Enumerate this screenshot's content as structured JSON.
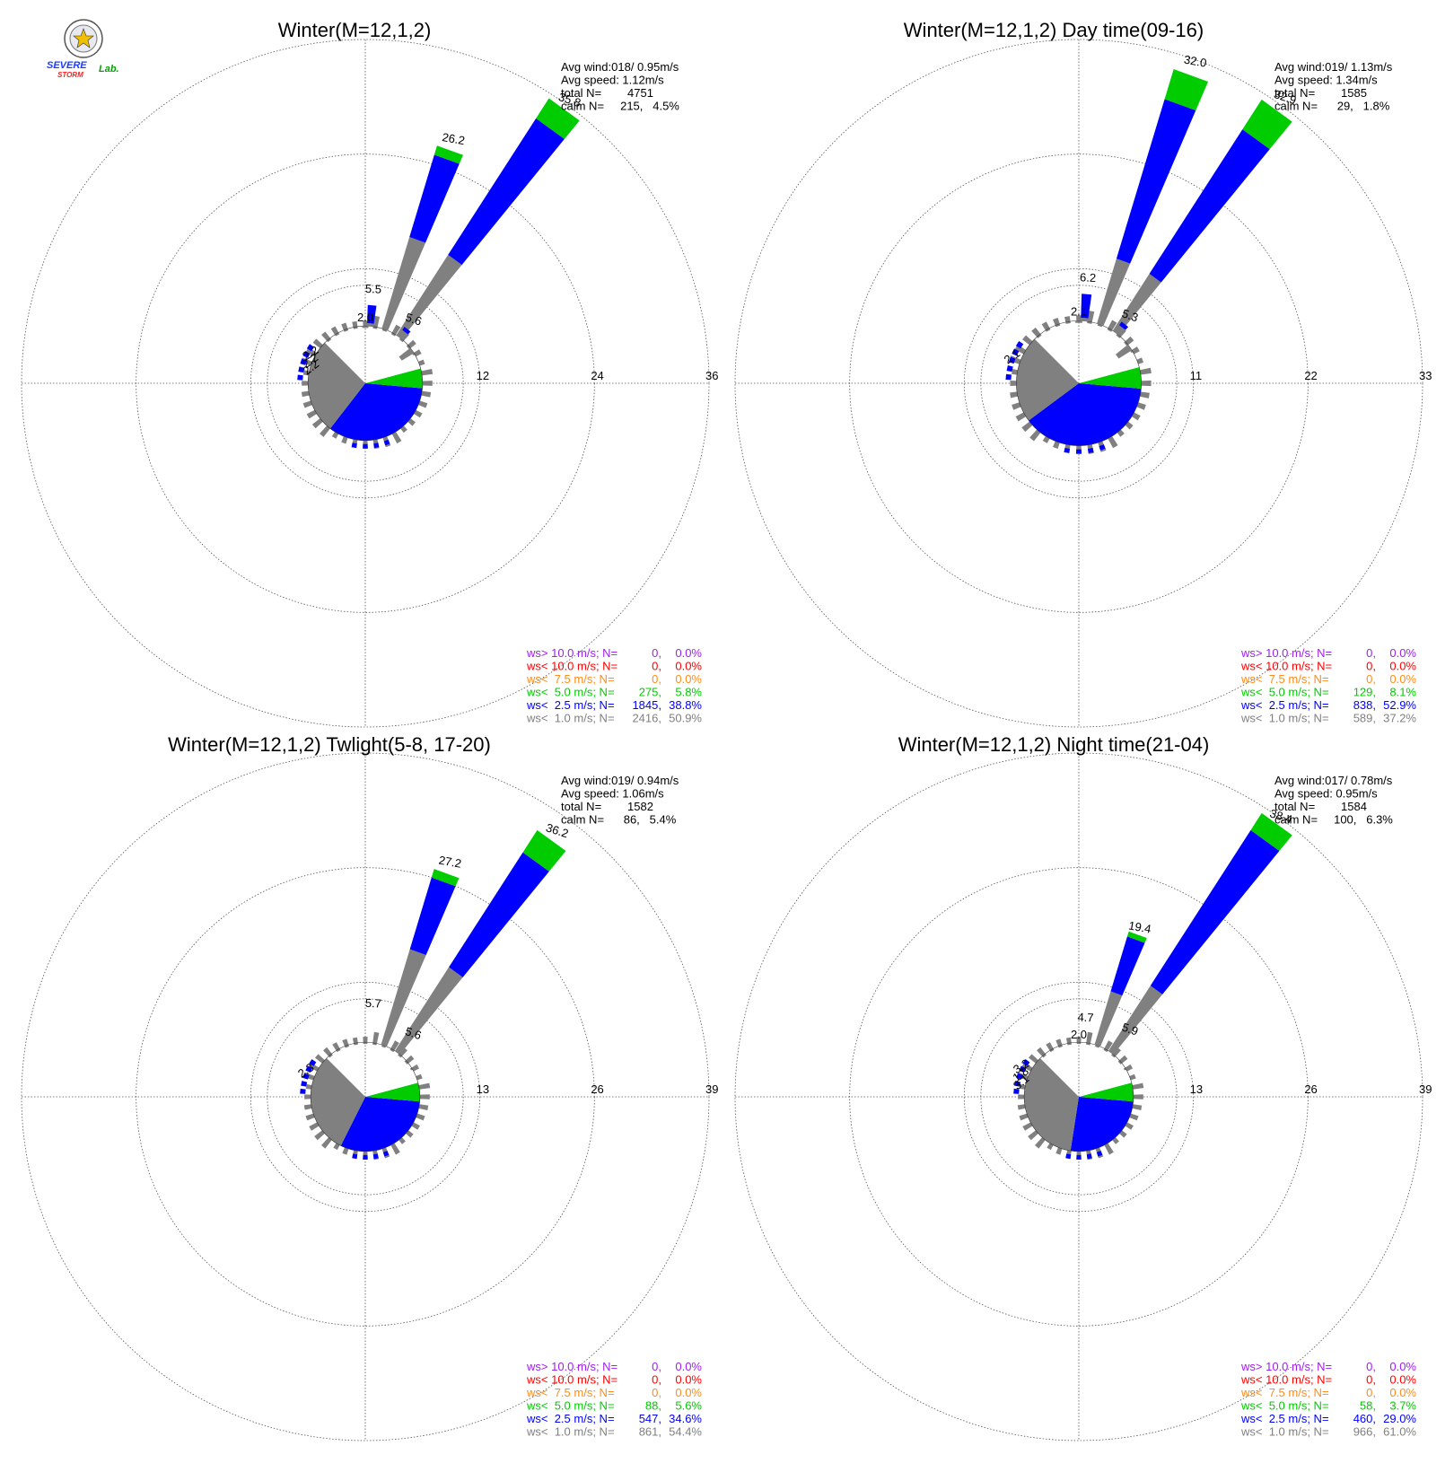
{
  "colors": {
    "ws_gt_10": "#a020f0",
    "ws_lt_10": "#ff0000",
    "ws_lt_7_5": "#ff8c1a",
    "ws_lt_5": "#00cc00",
    "ws_lt_2_5": "#0000ff",
    "ws_lt_1": "#808080"
  },
  "logo": {
    "text_severe": "SEVERE",
    "text_storm": "STORM",
    "text_lab": "Lab."
  },
  "chart_data": [
    {
      "type": "windrose",
      "title": "Winter(M=12,1,2)",
      "rmax": 36,
      "ticks": [
        "12",
        "24",
        "36"
      ],
      "info": [
        "Avg wind:018/ 0.95m/s",
        "Avg speed: 1.12m/s",
        "total N=        4751",
        "calm N=     215,   4.5%"
      ],
      "petal_labels": [
        {
          "text": "35.8",
          "dir": 36,
          "r": 36.2
        },
        {
          "text": "26.2",
          "dir": 20,
          "r": 26.8
        },
        {
          "text": "5.5",
          "dir": 5,
          "r": 9.5
        },
        {
          "text": "2.0",
          "dir": 0,
          "r": 6.5
        },
        {
          "text": "5.6",
          "dir": 38,
          "r": 8.0
        },
        {
          "text": "2.2",
          "dir": 297,
          "r": 6.2
        },
        {
          "text": "2.2",
          "dir": 290,
          "r": 5.9
        },
        {
          "text": "2.2",
          "dir": 284,
          "r": 5.6
        }
      ],
      "petals": [
        {
          "dir": 20,
          "g": 16,
          "b": 25,
          "gr": 26
        },
        {
          "dir": 36,
          "g": 16,
          "b": 33,
          "gr": 35.5
        },
        {
          "dir": 5,
          "g": 6.3,
          "b": 8.2
        },
        {
          "dir": 0,
          "g": 5.8
        },
        {
          "dir": 38,
          "g": 6.8,
          "b": 7.2
        },
        {
          "dir": 55,
          "g": 4.5
        }
      ],
      "core": {
        "r": 6,
        "b": 0.55,
        "gr": 0.12
      },
      "legend": [
        {
          "label": "ws> 10.0 m/s; N=",
          "n": "0,",
          "pct": "0.0%",
          "color": "ws_gt_10"
        },
        {
          "label": "ws< 10.0 m/s; N=",
          "n": "0,",
          "pct": "0.0%",
          "color": "ws_lt_10"
        },
        {
          "label": "ws<  7.5 m/s; N=",
          "n": "0,",
          "pct": "0.0%",
          "color": "ws_lt_7_5"
        },
        {
          "label": "ws<  5.0 m/s; N=",
          "n": "275,",
          "pct": "5.8%",
          "color": "ws_lt_5"
        },
        {
          "label": "ws<  2.5 m/s; N=",
          "n": "1845,",
          "pct": "38.8%",
          "color": "ws_lt_2_5"
        },
        {
          "label": "ws<  1.0 m/s; N=",
          "n": "2416,",
          "pct": "50.9%",
          "color": "ws_lt_1"
        }
      ]
    },
    {
      "type": "windrose",
      "title": "Winter(M=12,1,2) Day time(09-16)",
      "rmax": 33,
      "ticks": [
        "11",
        "22",
        "33"
      ],
      "info": [
        "Avg wind:019/ 1.13m/s",
        "Avg speed: 1.34m/s",
        "total N=        1585",
        "calm N=      29,   1.8%"
      ],
      "petal_labels": [
        {
          "text": "32.0",
          "dir": 20,
          "r": 32.5
        },
        {
          "text": "32.9",
          "dir": 36,
          "r": 33.5
        },
        {
          "text": "6.2",
          "dir": 5,
          "r": 9.8
        },
        {
          "text": "2.1",
          "dir": 0,
          "r": 6.5
        },
        {
          "text": "5.3",
          "dir": 38,
          "r": 7.8
        },
        {
          "text": "2.1",
          "dir": 290,
          "r": 6.6
        }
      ],
      "petals": [
        {
          "dir": 20,
          "g": 12.5,
          "b": 28.5,
          "gr": 31.5
        },
        {
          "dir": 36,
          "g": 12.5,
          "b": 29,
          "gr": 32.4
        },
        {
          "dir": 5,
          "g": 6.3,
          "b": 8.6
        },
        {
          "dir": 0,
          "g": 5.8
        },
        {
          "dir": 38,
          "g": 6.8,
          "b": 7.2
        },
        {
          "dir": 55,
          "g": 4.5
        }
      ],
      "core": {
        "r": 6,
        "b": 0.62,
        "gr": 0.1
      },
      "legend": [
        {
          "label": "ws> 10.0 m/s; N=",
          "n": "0,",
          "pct": "0.0%",
          "color": "ws_gt_10"
        },
        {
          "label": "ws< 10.0 m/s; N=",
          "n": "0,",
          "pct": "0.0%",
          "color": "ws_lt_10"
        },
        {
          "label": "ws<  7.5 m/s; N=",
          "n": "0,",
          "pct": "0.0%",
          "color": "ws_lt_7_5"
        },
        {
          "label": "ws<  5.0 m/s; N=",
          "n": "129,",
          "pct": "8.1%",
          "color": "ws_lt_5"
        },
        {
          "label": "ws<  2.5 m/s; N=",
          "n": "838,",
          "pct": "52.9%",
          "color": "ws_lt_2_5"
        },
        {
          "label": "ws<  1.0 m/s; N=",
          "n": "589,",
          "pct": "37.2%",
          "color": "ws_lt_1"
        }
      ]
    },
    {
      "type": "windrose",
      "title": "Winter(M=12,1,2) Twlight(5-8, 17-20)",
      "rmax": 39,
      "ticks": [
        "13",
        "26",
        "39"
      ],
      "info": [
        "Avg wind:019/ 0.94m/s",
        "Avg speed: 1.06m/s",
        "total N=        1582",
        "calm N=      86,   5.4%"
      ],
      "petal_labels": [
        {
          "text": "36.2",
          "dir": 36,
          "r": 36.8
        },
        {
          "text": "27.2",
          "dir": 20,
          "r": 27.9
        },
        {
          "text": "5.7",
          "dir": 5,
          "r": 10.2
        },
        {
          "text": "5.6",
          "dir": 38,
          "r": 8.6
        },
        {
          "text": "2.3",
          "dir": 292,
          "r": 7.0
        }
      ],
      "petals": [
        {
          "dir": 20,
          "g": 17.5,
          "b": 26,
          "gr": 27
        },
        {
          "dir": 36,
          "g": 17.5,
          "b": 33,
          "gr": 36
        }
      ],
      "core": {
        "r": 6.2,
        "b": 0.5,
        "gr": 0.1
      },
      "legend": [
        {
          "label": "ws> 10.0 m/s; N=",
          "n": "0,",
          "pct": "0.0%",
          "color": "ws_gt_10"
        },
        {
          "label": "ws< 10.0 m/s; N=",
          "n": "0,",
          "pct": "0.0%",
          "color": "ws_lt_10"
        },
        {
          "label": "ws<  7.5 m/s; N=",
          "n": "0,",
          "pct": "0.0%",
          "color": "ws_lt_7_5"
        },
        {
          "label": "ws<  5.0 m/s; N=",
          "n": "88,",
          "pct": "5.6%",
          "color": "ws_lt_5"
        },
        {
          "label": "ws<  2.5 m/s; N=",
          "n": "547,",
          "pct": "34.6%",
          "color": "ws_lt_2_5"
        },
        {
          "label": "ws<  1.0 m/s; N=",
          "n": "861,",
          "pct": "54.4%",
          "color": "ws_lt_1"
        }
      ]
    },
    {
      "type": "windrose",
      "title": "Winter(M=12,1,2) Night time(21-04)",
      "rmax": 39,
      "ticks": [
        "13",
        "26",
        "39"
      ],
      "info": [
        "Avg wind:017/ 0.78m/s",
        "Avg speed: 0.95m/s",
        "total N=        1584",
        "calm N=     100,   6.3%"
      ],
      "petal_labels": [
        {
          "text": "38.4",
          "dir": 36,
          "r": 38.8
        },
        {
          "text": "19.4",
          "dir": 20,
          "r": 20.0
        },
        {
          "text": "4.7",
          "dir": 5,
          "r": 8.6
        },
        {
          "text": "2.0",
          "dir": 0,
          "r": 6.6
        },
        {
          "text": "5.9",
          "dir": 38,
          "r": 9.2
        },
        {
          "text": "3.2",
          "dir": 296,
          "r": 7.0
        },
        {
          "text": "1.8",
          "dir": 289,
          "r": 6.7
        },
        {
          "text": "3.1",
          "dir": 282,
          "r": 6.4
        }
      ],
      "petals": [
        {
          "dir": 20,
          "g": 12.5,
          "b": 19,
          "gr": 19.6
        },
        {
          "dir": 36,
          "g": 15,
          "b": 36,
          "gr": 38.3
        }
      ],
      "core": {
        "r": 6.2,
        "b": 0.42,
        "gr": 0.1
      },
      "legend": [
        {
          "label": "ws> 10.0 m/s; N=",
          "n": "0,",
          "pct": "0.0%",
          "color": "ws_gt_10"
        },
        {
          "label": "ws< 10.0 m/s; N=",
          "n": "0,",
          "pct": "0.0%",
          "color": "ws_lt_10"
        },
        {
          "label": "ws<  7.5 m/s; N=",
          "n": "0,",
          "pct": "0.0%",
          "color": "ws_lt_7_5"
        },
        {
          "label": "ws<  5.0 m/s; N=",
          "n": "58,",
          "pct": "3.7%",
          "color": "ws_lt_5"
        },
        {
          "label": "ws<  2.5 m/s; N=",
          "n": "460,",
          "pct": "29.0%",
          "color": "ws_lt_2_5"
        },
        {
          "label": "ws<  1.0 m/s; N=",
          "n": "966,",
          "pct": "61.0%",
          "color": "ws_lt_1"
        }
      ]
    }
  ]
}
